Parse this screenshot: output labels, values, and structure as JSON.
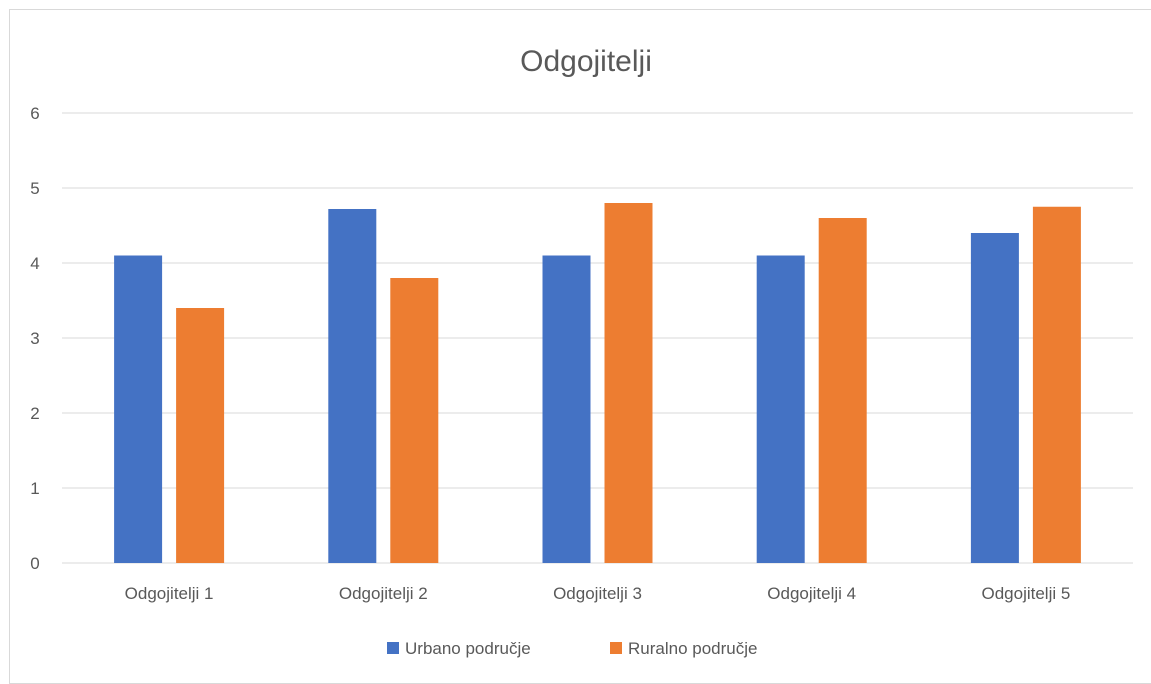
{
  "chart_data": {
    "type": "bar",
    "title": "Odgojitelji",
    "xlabel": "",
    "ylabel": "",
    "categories": [
      "Odgojitelji 1",
      "Odgojitelji 2",
      "Odgojitelji 3",
      "Odgojitelji 4",
      "Odgojitelji 5"
    ],
    "series": [
      {
        "name": "Urbano područje",
        "color": "#4472c4",
        "values": [
          4.1,
          4.72,
          4.1,
          4.1,
          4.4
        ]
      },
      {
        "name": "Ruralno područje",
        "color": "#ed7d31",
        "values": [
          3.4,
          3.8,
          4.8,
          4.6,
          4.75
        ]
      }
    ],
    "ylim": [
      0,
      6
    ],
    "yticks": [
      0,
      1,
      2,
      3,
      4,
      5,
      6
    ],
    "grid": true,
    "legend_position": "bottom"
  }
}
